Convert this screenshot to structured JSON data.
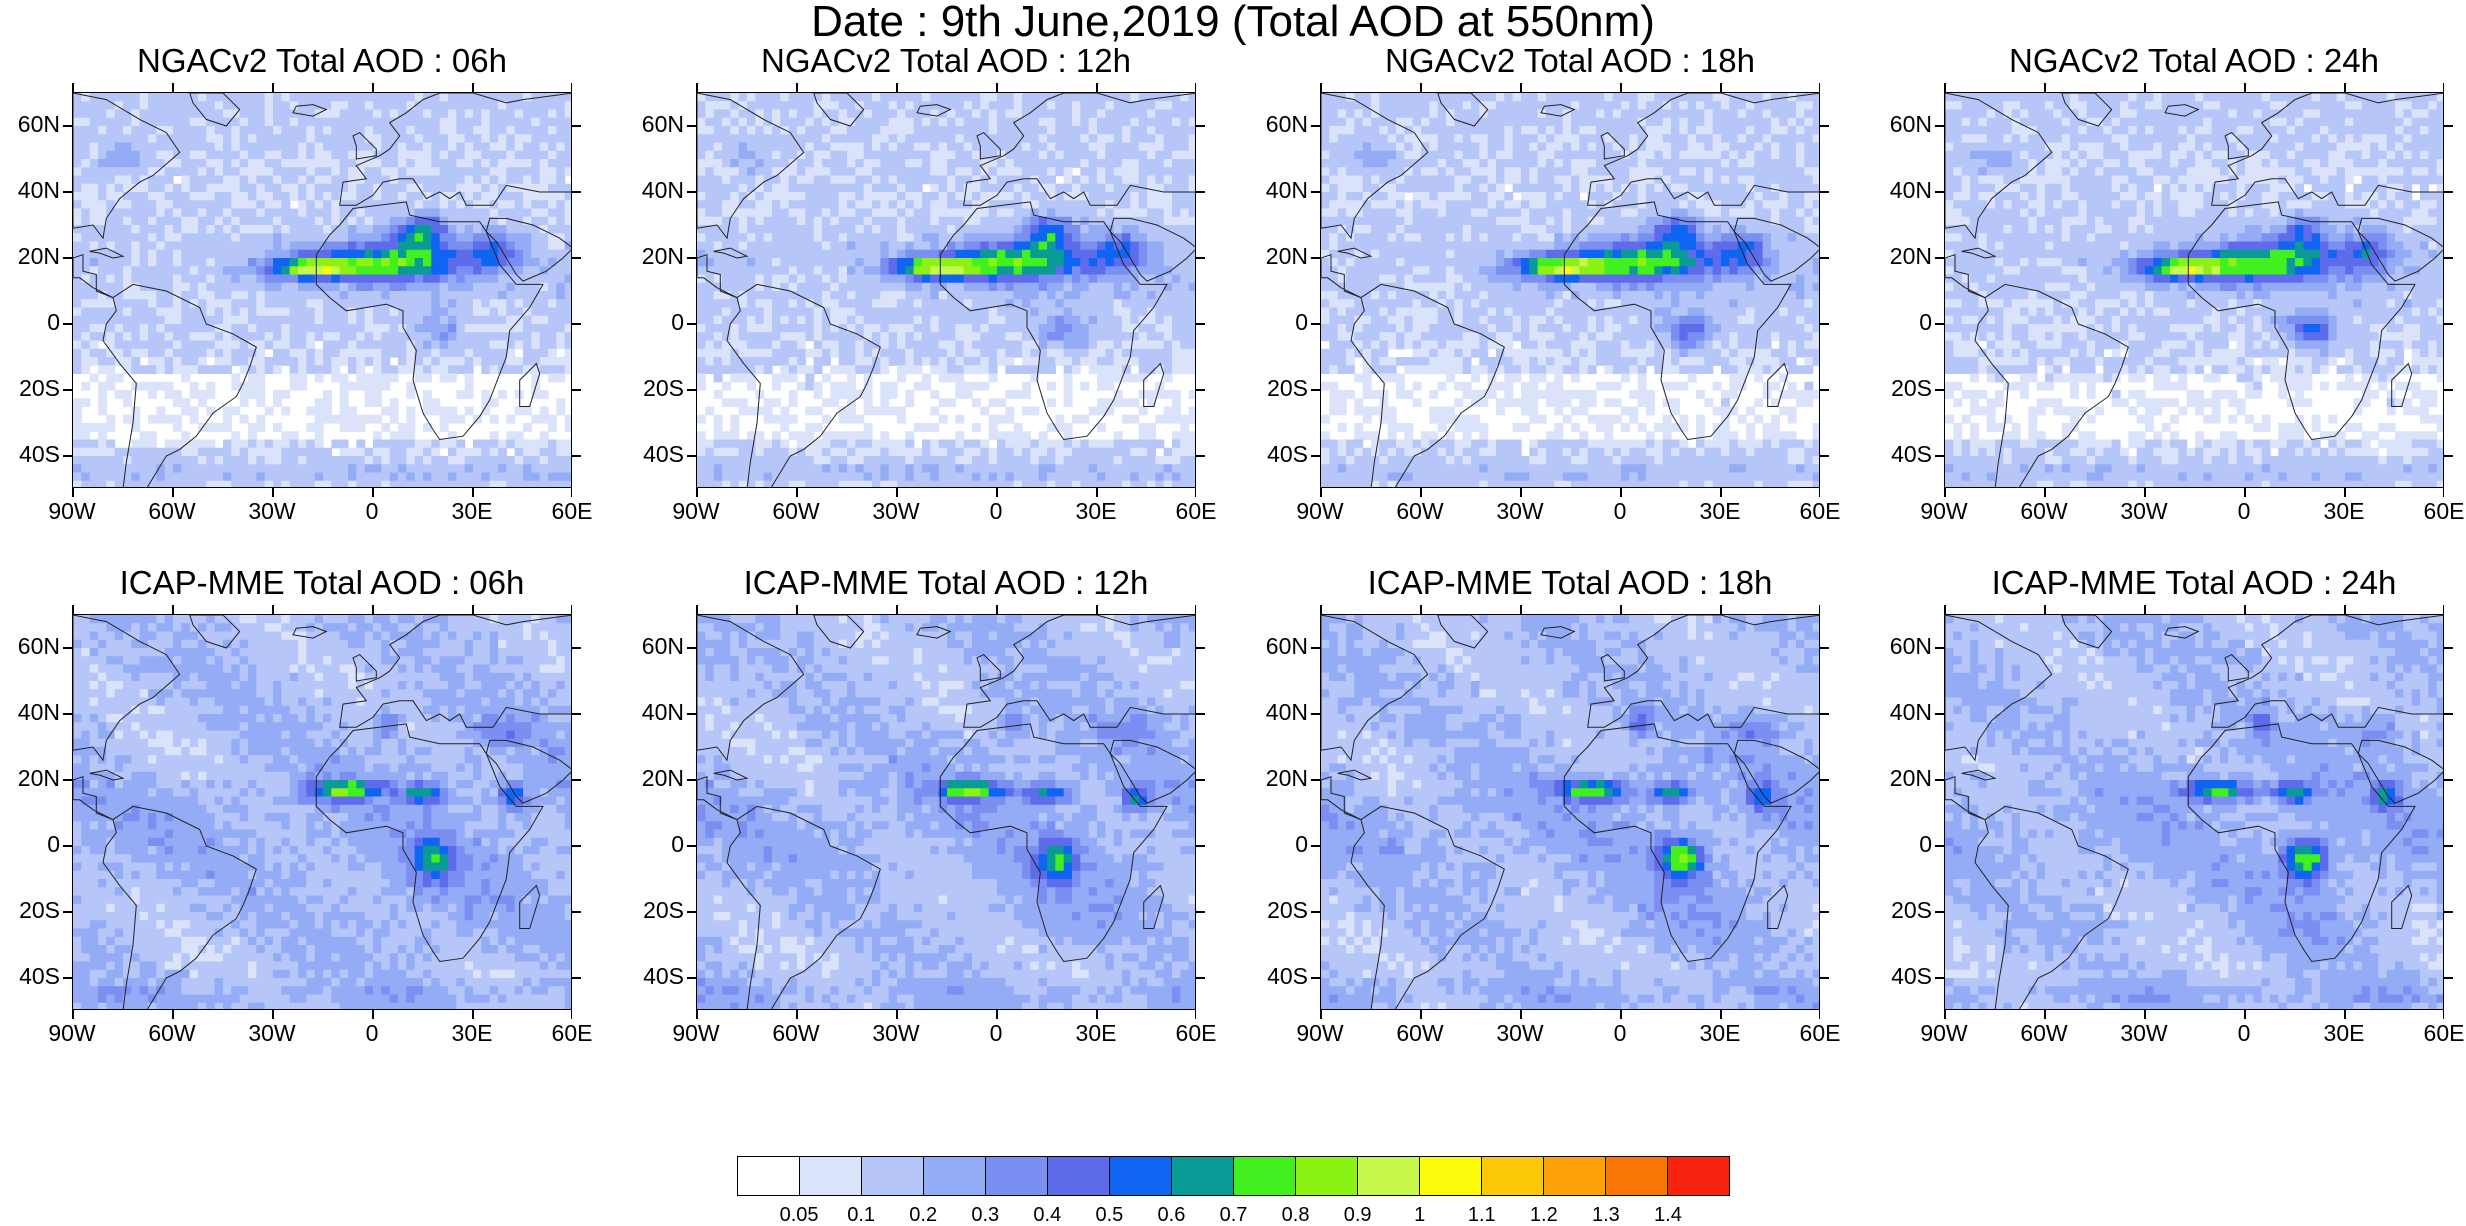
{
  "title": "Date : 9th June,2019 (Total AOD at 550nm)",
  "lat_labels": [
    "60N",
    "40N",
    "20N",
    "0",
    "20S",
    "40S"
  ],
  "lon_labels": [
    "90W",
    "60W",
    "30W",
    "0",
    "30E",
    "60E"
  ],
  "panels": [
    {
      "title": "NGACv2 Total AOD : 06h",
      "model": "NGACv2",
      "forecast_hour": "06h"
    },
    {
      "title": "NGACv2 Total AOD : 12h",
      "model": "NGACv2",
      "forecast_hour": "12h"
    },
    {
      "title": "NGACv2 Total AOD : 18h",
      "model": "NGACv2",
      "forecast_hour": "18h"
    },
    {
      "title": "NGACv2 Total AOD : 24h",
      "model": "NGACv2",
      "forecast_hour": "24h"
    },
    {
      "title": "ICAP-MME Total AOD : 06h",
      "model": "ICAP-MME",
      "forecast_hour": "06h"
    },
    {
      "title": "ICAP-MME Total AOD : 12h",
      "model": "ICAP-MME",
      "forecast_hour": "12h"
    },
    {
      "title": "ICAP-MME Total AOD : 18h",
      "model": "ICAP-MME",
      "forecast_hour": "18h"
    },
    {
      "title": "ICAP-MME Total AOD : 24h",
      "model": "ICAP-MME",
      "forecast_hour": "24h"
    }
  ],
  "colorbar": {
    "labels": [
      "0.05",
      "0.1",
      "0.2",
      "0.3",
      "0.4",
      "0.5",
      "0.6",
      "0.7",
      "0.8",
      "0.9",
      "1",
      "1.1",
      "1.2",
      "1.3",
      "1.4"
    ],
    "colors": [
      "#ffffff",
      "#dbe3fb",
      "#b6c6f8",
      "#94abf6",
      "#7b8ef1",
      "#5e6cec",
      "#0f64f2",
      "#0b9b96",
      "#43f01f",
      "#8cf214",
      "#c5f84a",
      "#fafa0a",
      "#fbc808",
      "#fba005",
      "#f97505",
      "#f62410"
    ]
  }
}
